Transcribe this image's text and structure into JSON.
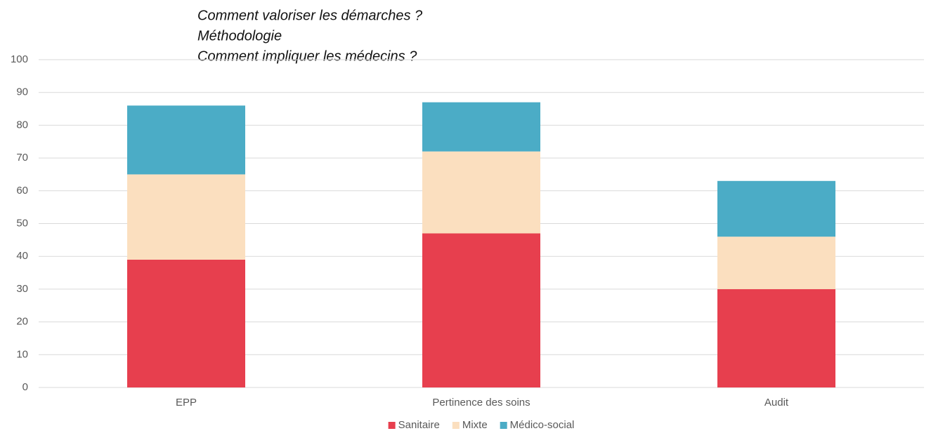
{
  "chart_data": {
    "type": "stacked_bar",
    "annotations": [
      "Comment valoriser les démarches ?",
      "Méthodologie",
      "Comment impliquer les médecins ?"
    ],
    "categories": [
      "EPP",
      "Pertinence des soins",
      "Audit"
    ],
    "series": [
      {
        "name": "Sanitaire",
        "color": "#e73f4e",
        "values": [
          39,
          47,
          30
        ]
      },
      {
        "name": "Mixte",
        "color": "#fbdfbf",
        "values": [
          26,
          25,
          16
        ]
      },
      {
        "name": "Médico-social",
        "color": "#4bacc6",
        "values": [
          21,
          15,
          17
        ]
      }
    ],
    "ylim": [
      0,
      100
    ],
    "yticks": [
      0,
      10,
      20,
      30,
      40,
      50,
      60,
      70,
      80,
      90,
      100
    ],
    "grid": true,
    "legend": "bottom"
  }
}
